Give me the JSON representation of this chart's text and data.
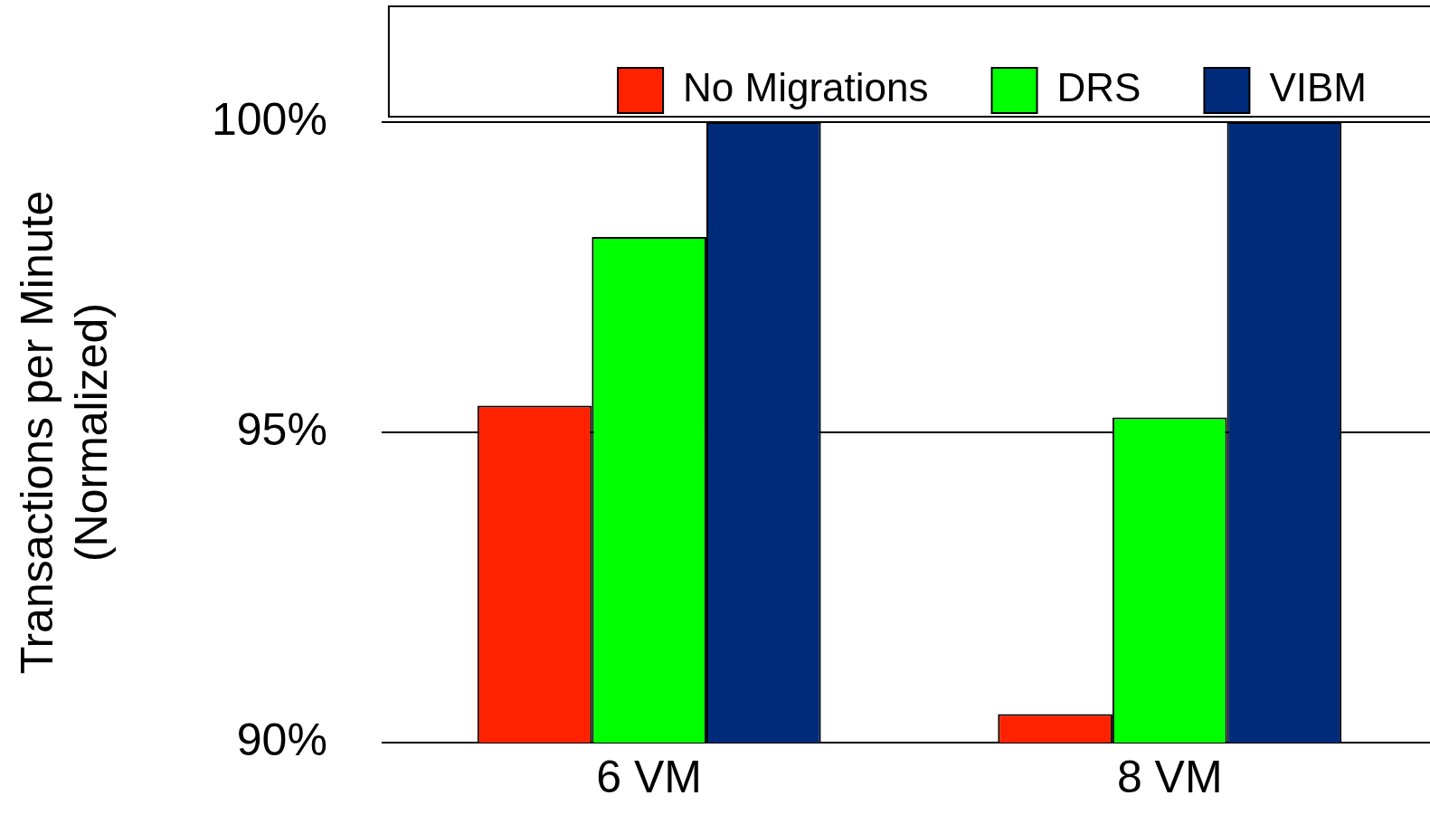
{
  "chart_data": {
    "type": "bar",
    "ylabel": "Transactions per Minute\n(Normalized)",
    "categories": [
      "6 VM",
      "8 VM"
    ],
    "series": [
      {
        "name": "No Migrations",
        "color": "#ff2200",
        "values": [
          95.43,
          90.46
        ]
      },
      {
        "name": "DRS",
        "color": "#00ff00",
        "values": [
          98.15,
          95.24
        ]
      },
      {
        "name": "VIBM",
        "color": "#002b7a",
        "values": [
          100,
          100
        ]
      }
    ],
    "ylim": [
      90,
      100
    ],
    "yticks": [
      {
        "value": 90,
        "label": "90%"
      },
      {
        "value": 95,
        "label": "95%"
      },
      {
        "value": 100,
        "label": "100%"
      }
    ],
    "grid": "y",
    "legend": "top"
  }
}
